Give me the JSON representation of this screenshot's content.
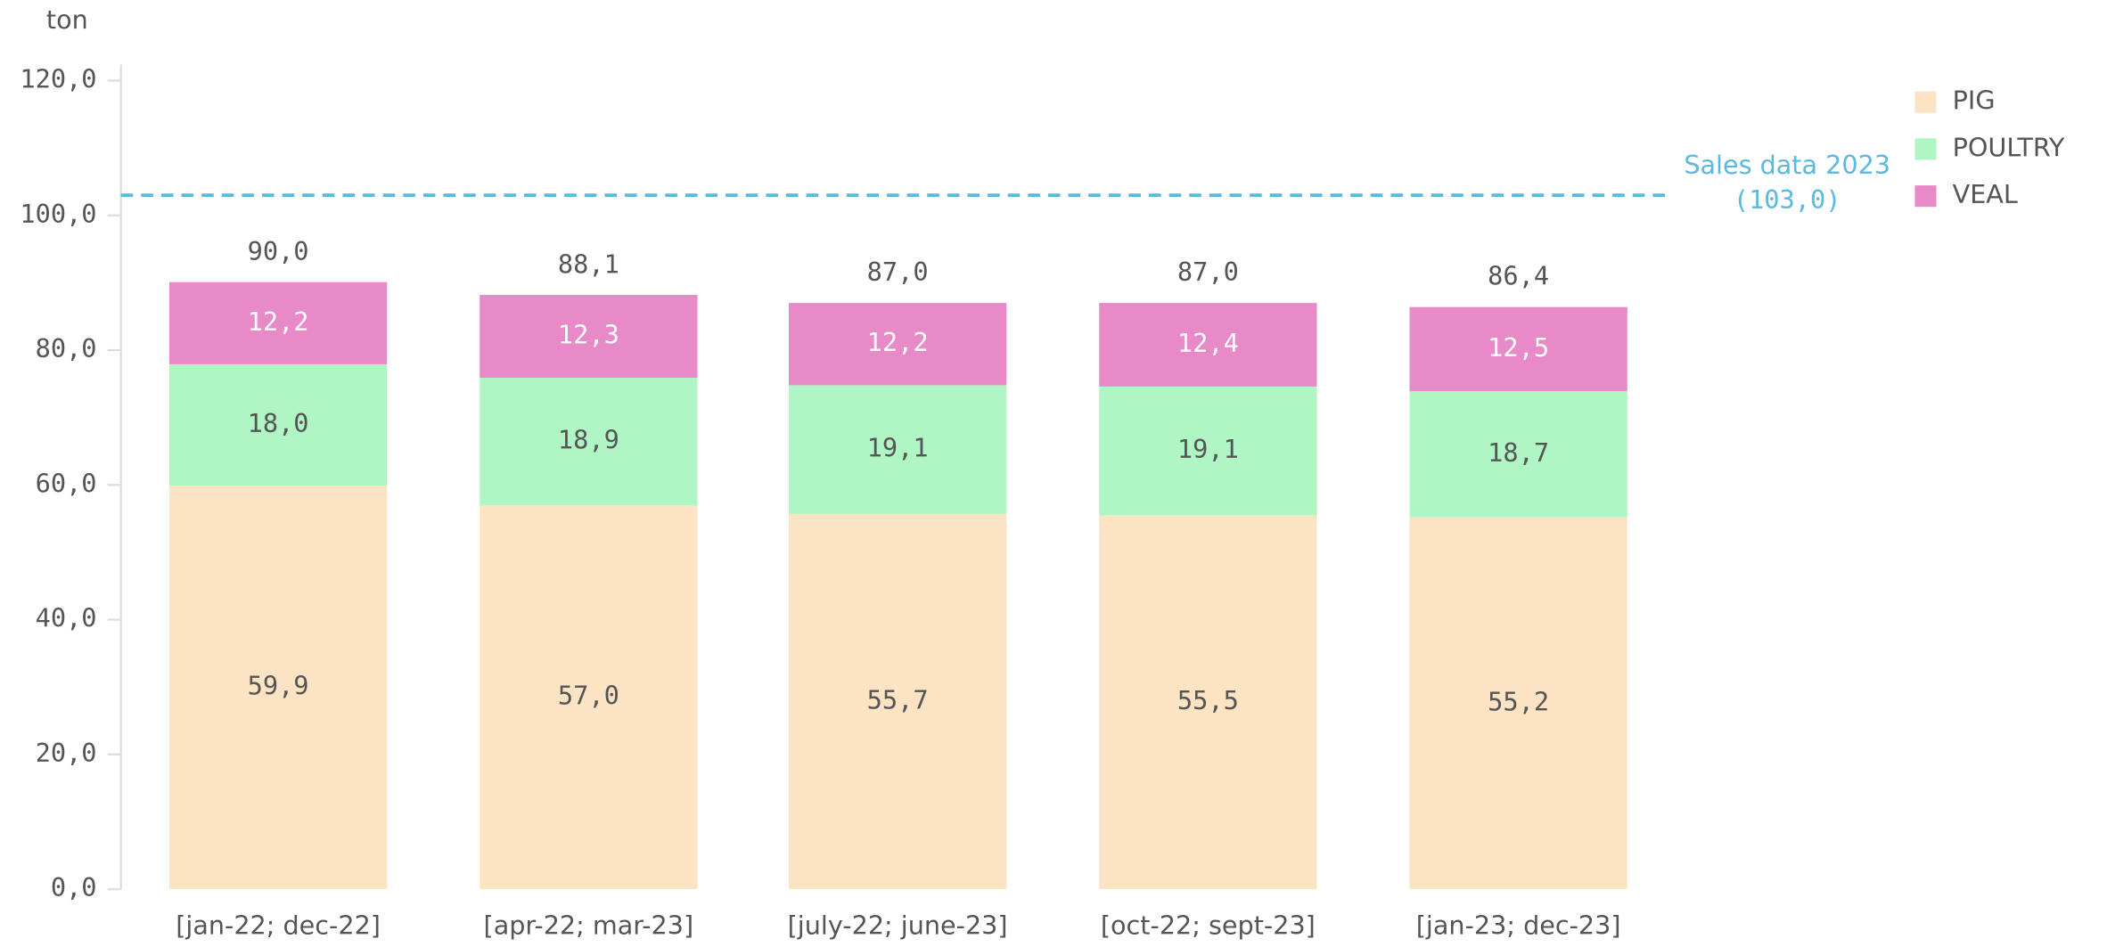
{
  "chart_data": {
    "type": "stacked_bar",
    "y_axis_label": "ton",
    "categories": [
      "[jan-22; dec-22]",
      "[apr-22; mar-23]",
      "[july-22; june-23]",
      "[oct-22; sept-23]",
      "[jan-23; dec-23]"
    ],
    "series": [
      {
        "name": "PIG",
        "color": "#fbe3c3",
        "values": [
          59.9,
          57.0,
          55.7,
          55.5,
          55.2
        ],
        "value_labels": [
          "59,9",
          "57,0",
          "55,7",
          "55,5",
          "55,2"
        ]
      },
      {
        "name": "POULTRY",
        "color": "#b0f5c4",
        "values": [
          18.0,
          18.9,
          19.1,
          19.1,
          18.7
        ],
        "value_labels": [
          "18,0",
          "18,9",
          "19,1",
          "19,1",
          "18,7"
        ]
      },
      {
        "name": "VEAL",
        "color": "#e88ac8",
        "values": [
          12.2,
          12.3,
          12.2,
          12.4,
          12.5
        ],
        "value_labels": [
          "12,2",
          "12,3",
          "12,2",
          "12,4",
          "12,5"
        ]
      }
    ],
    "totals": {
      "values": [
        90.0,
        88.1,
        87.0,
        87.0,
        86.4
      ],
      "value_labels": [
        "90,0",
        "88,1",
        "87,0",
        "87,0",
        "86,4"
      ]
    },
    "reference_line": {
      "value": 103.0,
      "label": "Sales data 2023",
      "value_label": "(103,0)",
      "color": "#5bb8e0"
    },
    "ylim": [
      0,
      120
    ],
    "yticks": [
      {
        "value": 0,
        "label": "0,0"
      },
      {
        "value": 20,
        "label": "20,0"
      },
      {
        "value": 40,
        "label": "40,0"
      },
      {
        "value": 60,
        "label": "60,0"
      },
      {
        "value": 80,
        "label": "80,0"
      },
      {
        "value": 100,
        "label": "100,0"
      },
      {
        "value": 120,
        "label": "120,0"
      }
    ],
    "legend": "top-right"
  }
}
